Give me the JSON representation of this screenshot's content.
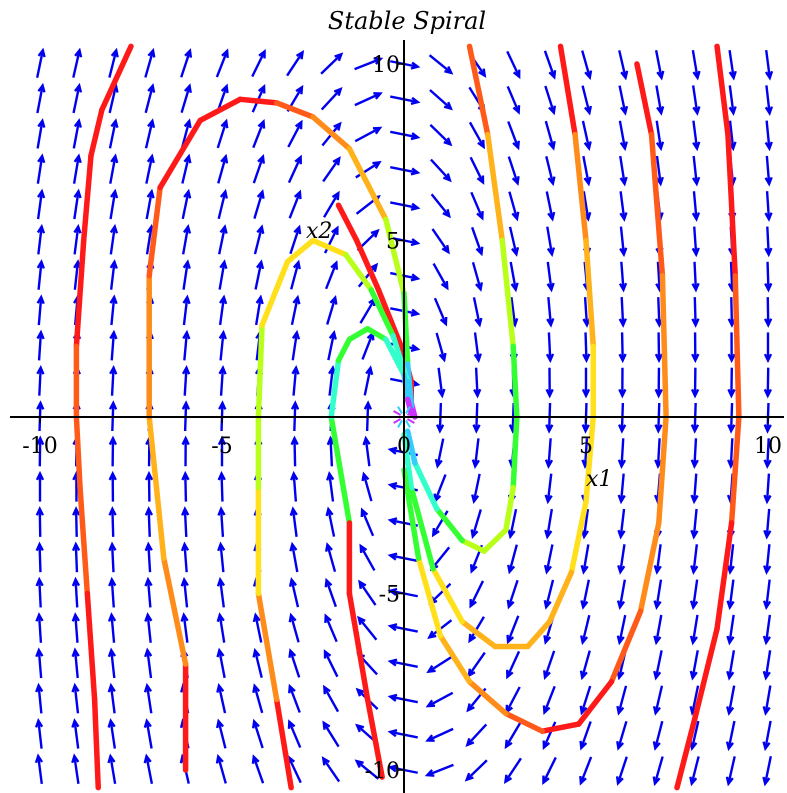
{
  "chart_data": {
    "type": "phase-portrait",
    "title": "Stable Spiral",
    "xlabel": "x1",
    "ylabel": "x2",
    "xlim": [
      -10.5,
      10.5
    ],
    "ylim": [
      -10.5,
      10.5
    ],
    "x_ticks": [
      -10,
      -5,
      0,
      5,
      10
    ],
    "y_ticks": [
      -10,
      -5,
      5,
      10
    ],
    "x_tick_labels": [
      "-10",
      "-5",
      "0",
      "5",
      "10"
    ],
    "y_tick_labels": [
      "-10",
      "-5",
      "5",
      "10"
    ],
    "field_color": "#0000ee",
    "trajectory_colors": [
      "#ff1a1a",
      "#ff5a1a",
      "#ff8c1a",
      "#ffb21a",
      "#ffe01a",
      "#b8ff1a",
      "#33ff33",
      "#33ffcc",
      "#33ccff",
      "#cc33ff"
    ],
    "trajectories": [
      {
        "points": [
          [
            -1.8,
            6
          ],
          [
            -1.3,
            5
          ],
          [
            -0.7,
            3.6
          ],
          [
            0,
            1.8
          ],
          [
            0.2,
            1
          ],
          [
            0.2,
            0.2
          ]
        ]
      },
      {
        "points": [
          [
            -7.5,
            10.5
          ],
          [
            -8.3,
            8.7
          ],
          [
            -8.6,
            7.4
          ],
          [
            -8.8,
            5
          ],
          [
            -9,
            2
          ],
          [
            -9,
            0
          ],
          [
            -8.9,
            -2
          ],
          [
            -8.7,
            -5
          ],
          [
            -8.5,
            -8
          ],
          [
            -8.4,
            -10.5
          ]
        ]
      },
      {
        "points": [
          [
            -6,
            -10
          ],
          [
            -6,
            -7
          ],
          [
            -6.6,
            -4
          ],
          [
            -7,
            0
          ],
          [
            -7,
            4
          ],
          [
            -6.7,
            6.5
          ],
          [
            -5.6,
            8.4
          ],
          [
            -4.5,
            9
          ],
          [
            -3.5,
            8.9
          ],
          [
            -2.5,
            8.5
          ],
          [
            -1.5,
            7.6
          ],
          [
            -0.5,
            5.6
          ],
          [
            0,
            3.5
          ],
          [
            0.1,
            1.5
          ],
          [
            0.2,
            0.4
          ],
          [
            0.3,
            0
          ]
        ]
      },
      {
        "points": [
          [
            -3.1,
            -10.5
          ],
          [
            -3.5,
            -8
          ],
          [
            -4,
            -5
          ],
          [
            -4,
            -2
          ],
          [
            -4,
            0
          ],
          [
            -3.9,
            2.6
          ],
          [
            -3.2,
            4.4
          ],
          [
            -2.5,
            5
          ],
          [
            -1.6,
            4.6
          ],
          [
            -0.9,
            3.6
          ],
          [
            -0.3,
            2.3
          ],
          [
            0.1,
            1
          ],
          [
            0.2,
            0.3
          ]
        ]
      },
      {
        "points": [
          [
            -1.5,
            -3
          ],
          [
            -2,
            0
          ],
          [
            -1.8,
            1.6
          ],
          [
            -1.5,
            2.2
          ],
          [
            -1,
            2.5
          ],
          [
            -0.5,
            2.2
          ],
          [
            0,
            1.2
          ],
          [
            0.1,
            0.5
          ],
          [
            0.2,
            0.1
          ]
        ]
      },
      {
        "points": [
          [
            -0.6,
            -10.2
          ],
          [
            -1,
            -8
          ],
          [
            -1.5,
            -5
          ],
          [
            -1.5,
            -3
          ]
        ]
      },
      {
        "points": [
          [
            1.8,
            10.5
          ],
          [
            2.3,
            8
          ],
          [
            2.7,
            5
          ],
          [
            3,
            2
          ],
          [
            3.1,
            0
          ],
          [
            3,
            -2
          ],
          [
            2.8,
            -3.2
          ],
          [
            2.2,
            -3.8
          ],
          [
            1.6,
            -3.5
          ],
          [
            0.9,
            -2.6
          ],
          [
            0.3,
            -1.3
          ],
          [
            0.1,
            -0.4
          ]
        ]
      },
      {
        "points": [
          [
            4.3,
            10.5
          ],
          [
            4.7,
            8
          ],
          [
            5,
            5
          ],
          [
            5.2,
            2
          ],
          [
            5.2,
            0
          ],
          [
            5,
            -2.4
          ],
          [
            4.6,
            -4.4
          ],
          [
            4,
            -5.8
          ],
          [
            3.4,
            -6.5
          ],
          [
            2.5,
            -6.5
          ],
          [
            1.6,
            -5.8
          ],
          [
            0.8,
            -4.3
          ],
          [
            0.2,
            -2
          ],
          [
            0,
            -0.5
          ]
        ]
      },
      {
        "points": [
          [
            6.4,
            10
          ],
          [
            6.8,
            8
          ],
          [
            7.1,
            4
          ],
          [
            7.2,
            0
          ],
          [
            7,
            -3
          ],
          [
            6.5,
            -5.5
          ],
          [
            5.7,
            -7.5
          ],
          [
            4.8,
            -8.7
          ],
          [
            3.8,
            -8.9
          ],
          [
            2.8,
            -8.4
          ],
          [
            1.8,
            -7.5
          ],
          [
            1,
            -6.2
          ],
          [
            0.4,
            -4
          ],
          [
            0,
            -1.5
          ]
        ]
      },
      {
        "points": [
          [
            8.6,
            10.5
          ],
          [
            8.9,
            8
          ],
          [
            9.1,
            4
          ],
          [
            9.2,
            0
          ],
          [
            9,
            -3
          ],
          [
            8.6,
            -6
          ],
          [
            8,
            -8.5
          ],
          [
            7.5,
            -10.5
          ]
        ]
      }
    ]
  }
}
